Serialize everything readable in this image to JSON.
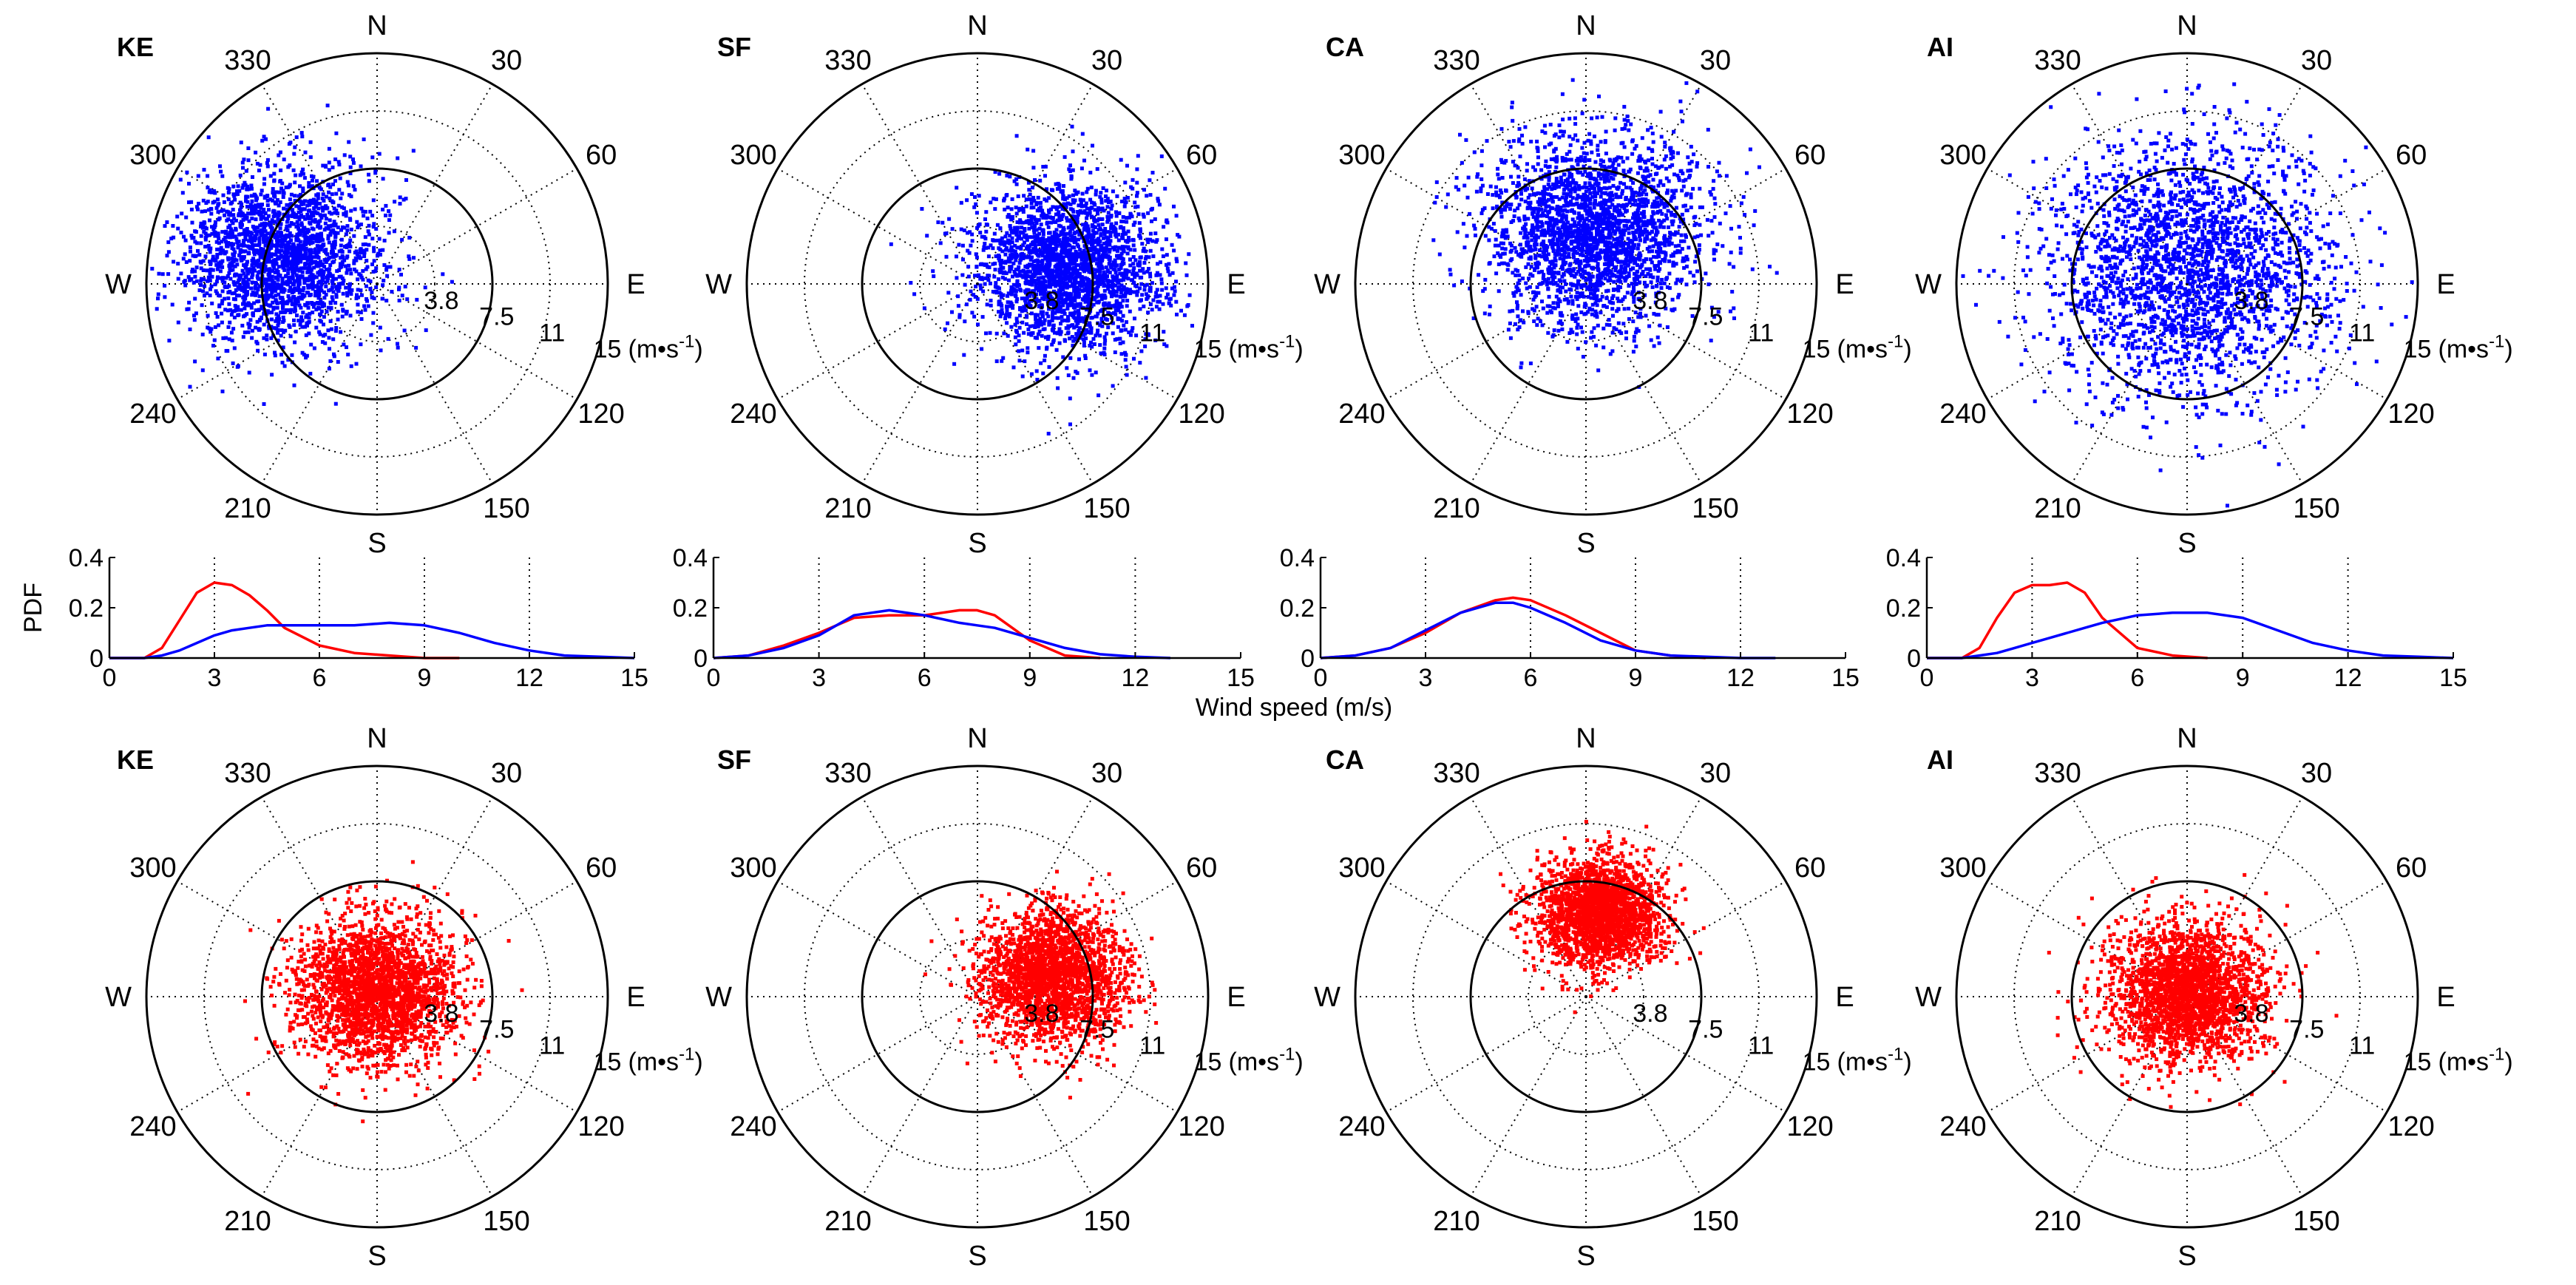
{
  "figure": {
    "shared_xlabel": "Wind speed (m/s)",
    "pdf_ylabel": "PDF",
    "series_colors": {
      "scatter_top": "#0000ff",
      "scatter_bottom": "#ff0000",
      "pdf_red": "#ff0000",
      "pdf_blue": "#0000ff"
    }
  },
  "chart_data": [
    {
      "type": "scatter",
      "subtype": "polar",
      "row": "top",
      "panel": "KE",
      "title": "KE",
      "color": "#0000ff",
      "direction_labels": [
        "N",
        "30",
        "60",
        "E",
        "120",
        "150",
        "S",
        "210",
        "240",
        "W",
        "300",
        "330"
      ],
      "radial_ticks": [
        "3.8",
        "7.5",
        "11",
        "15"
      ],
      "radial_unit_label": "(m•s",
      "radial_unit_sup": "-1",
      "rmax": 15,
      "solid_ring": 7.5,
      "cluster": {
        "center_bearing_deg": 285,
        "center_speed": 6.5,
        "spread_speed": 3.2,
        "n": 2200
      }
    },
    {
      "type": "scatter",
      "subtype": "polar",
      "row": "top",
      "panel": "SF",
      "title": "SF",
      "color": "#0000ff",
      "direction_labels": [
        "N",
        "30",
        "60",
        "E",
        "120",
        "150",
        "S",
        "210",
        "240",
        "W",
        "300",
        "330"
      ],
      "radial_ticks": [
        "3.8",
        "7.5",
        "11",
        "15"
      ],
      "radial_unit_label": "(m•s",
      "radial_unit_sup": "-1",
      "rmax": 15,
      "solid_ring": 7.5,
      "cluster": {
        "center_bearing_deg": 80,
        "center_speed": 6.0,
        "spread_speed": 3.0,
        "n": 2400
      }
    },
    {
      "type": "scatter",
      "subtype": "polar",
      "row": "top",
      "panel": "CA",
      "title": "CA",
      "color": "#0000ff",
      "direction_labels": [
        "N",
        "30",
        "60",
        "E",
        "120",
        "150",
        "S",
        "210",
        "240",
        "W",
        "300",
        "330"
      ],
      "radial_ticks": [
        "3.8",
        "7.5",
        "11",
        "15"
      ],
      "radial_unit_label": "(m•s",
      "radial_unit_sup": "-1",
      "rmax": 15,
      "solid_ring": 7.5,
      "cluster": {
        "center_bearing_deg": 10,
        "center_speed": 3.5,
        "spread_speed": 3.4,
        "n": 2400
      }
    },
    {
      "type": "scatter",
      "subtype": "polar",
      "row": "top",
      "panel": "AI",
      "title": "AI",
      "color": "#0000ff",
      "direction_labels": [
        "N",
        "30",
        "60",
        "E",
        "120",
        "150",
        "S",
        "210",
        "240",
        "W",
        "300",
        "330"
      ],
      "radial_ticks": [
        "3.8",
        "7.5",
        "11",
        "15"
      ],
      "radial_unit_label": "(m•s",
      "radial_unit_sup": "-1",
      "rmax": 15,
      "solid_ring": 7.5,
      "cluster": {
        "center_bearing_deg": 0,
        "center_speed": 1.0,
        "spread_speed": 4.6,
        "n": 2400
      }
    },
    {
      "type": "line",
      "row": "middle",
      "panel": "KE-pdf",
      "xlabel": "",
      "ylabel": "PDF",
      "xlim": [
        0,
        15
      ],
      "ylim": [
        0,
        0.4
      ],
      "xticks": [
        "0",
        "3",
        "6",
        "9",
        "12",
        "15"
      ],
      "yticks": [
        "0",
        "0.2",
        "0.4"
      ],
      "x": [
        0,
        1,
        1.5,
        2,
        2.5,
        3,
        3.5,
        4,
        4.5,
        5,
        6,
        7,
        8,
        9,
        10,
        11,
        12,
        13,
        14,
        15
      ],
      "series": [
        {
          "name": "red",
          "color": "#ff0000",
          "values": [
            0,
            0.0,
            0.04,
            0.15,
            0.26,
            0.3,
            0.29,
            0.25,
            0.19,
            0.12,
            0.05,
            0.02,
            0.01,
            0.0,
            0.0,
            null,
            null,
            null,
            null,
            null
          ]
        },
        {
          "name": "blue",
          "color": "#0000ff",
          "values": [
            0,
            0.0,
            0.01,
            0.03,
            0.06,
            0.09,
            0.11,
            0.12,
            0.13,
            0.13,
            0.13,
            0.13,
            0.14,
            0.13,
            0.1,
            0.06,
            0.03,
            0.01,
            0.005,
            0.0
          ]
        }
      ]
    },
    {
      "type": "line",
      "row": "middle",
      "panel": "SF-pdf",
      "xlabel": "",
      "ylabel": "",
      "xlim": [
        0,
        15
      ],
      "ylim": [
        0,
        0.4
      ],
      "xticks": [
        "0",
        "3",
        "6",
        "9",
        "12",
        "15"
      ],
      "yticks": [
        "0",
        "0.2",
        "0.4"
      ],
      "x": [
        0,
        1,
        2,
        3,
        4,
        5,
        6,
        7,
        7.5,
        8,
        9,
        10,
        11,
        12,
        13,
        14,
        15
      ],
      "series": [
        {
          "name": "red",
          "color": "#ff0000",
          "values": [
            0,
            0.01,
            0.05,
            0.1,
            0.16,
            0.17,
            0.17,
            0.19,
            0.19,
            0.17,
            0.07,
            0.01,
            0.0,
            null,
            null,
            null,
            null
          ]
        },
        {
          "name": "blue",
          "color": "#0000ff",
          "values": [
            0,
            0.01,
            0.04,
            0.09,
            0.17,
            0.19,
            0.17,
            0.14,
            0.13,
            0.12,
            0.08,
            0.04,
            0.015,
            0.005,
            0.0,
            null,
            null
          ]
        }
      ]
    },
    {
      "type": "line",
      "row": "middle",
      "panel": "CA-pdf",
      "xlabel": "",
      "ylabel": "",
      "xlim": [
        0,
        15
      ],
      "ylim": [
        0,
        0.4
      ],
      "xticks": [
        "0",
        "3",
        "6",
        "9",
        "12",
        "15"
      ],
      "yticks": [
        "0",
        "0.2",
        "0.4"
      ],
      "x": [
        0,
        1,
        2,
        3,
        4,
        5,
        5.5,
        6,
        7,
        8,
        9,
        10,
        11,
        12,
        13,
        14,
        15
      ],
      "series": [
        {
          "name": "red",
          "color": "#ff0000",
          "values": [
            0,
            0.01,
            0.04,
            0.1,
            0.18,
            0.23,
            0.24,
            0.23,
            0.17,
            0.1,
            0.03,
            0.01,
            0.0,
            null,
            null,
            null,
            null
          ]
        },
        {
          "name": "blue",
          "color": "#0000ff",
          "values": [
            0,
            0.01,
            0.04,
            0.11,
            0.18,
            0.22,
            0.22,
            0.2,
            0.14,
            0.07,
            0.03,
            0.01,
            0.005,
            0.0,
            0.0,
            null,
            null
          ]
        }
      ]
    },
    {
      "type": "line",
      "row": "middle",
      "panel": "AI-pdf",
      "xlabel": "",
      "ylabel": "",
      "xlim": [
        0,
        15
      ],
      "ylim": [
        0,
        0.4
      ],
      "xticks": [
        "0",
        "3",
        "6",
        "9",
        "12",
        "15"
      ],
      "yticks": [
        "0",
        "0.2",
        "0.4"
      ],
      "x": [
        0,
        1,
        1.5,
        2,
        2.5,
        3,
        3.5,
        4,
        4.5,
        5,
        6,
        7,
        8,
        9,
        10,
        11,
        12,
        13,
        14,
        15
      ],
      "series": [
        {
          "name": "red",
          "color": "#ff0000",
          "values": [
            0,
            0.0,
            0.04,
            0.16,
            0.26,
            0.29,
            0.29,
            0.3,
            0.26,
            0.16,
            0.04,
            0.01,
            0.0,
            null,
            null,
            null,
            null,
            null,
            null,
            null
          ]
        },
        {
          "name": "blue",
          "color": "#0000ff",
          "values": [
            0,
            0.0,
            0.01,
            0.02,
            0.04,
            0.06,
            0.08,
            0.1,
            0.12,
            0.14,
            0.17,
            0.18,
            0.18,
            0.16,
            0.11,
            0.06,
            0.03,
            0.01,
            0.005,
            0.0
          ]
        }
      ]
    },
    {
      "type": "scatter",
      "subtype": "polar",
      "row": "bottom",
      "panel": "KE",
      "title": "KE",
      "color": "#ff0000",
      "direction_labels": [
        "N",
        "30",
        "60",
        "E",
        "120",
        "150",
        "S",
        "210",
        "240",
        "W",
        "300",
        "330"
      ],
      "radial_ticks": [
        "3.8",
        "7.5",
        "11",
        "15"
      ],
      "radial_unit_label": "(m•s",
      "radial_unit_sup": "-1",
      "rmax": 15,
      "solid_ring": 7.5,
      "cluster": {
        "center_bearing_deg": 0,
        "center_speed": 0.3,
        "spread_speed": 2.6,
        "n": 2400
      }
    },
    {
      "type": "scatter",
      "subtype": "polar",
      "row": "bottom",
      "panel": "SF",
      "title": "SF",
      "color": "#ff0000",
      "direction_labels": [
        "N",
        "30",
        "60",
        "E",
        "120",
        "150",
        "S",
        "210",
        "240",
        "W",
        "300",
        "330"
      ],
      "radial_ticks": [
        "3.8",
        "7.5",
        "11",
        "15"
      ],
      "radial_unit_label": "(m•s",
      "radial_unit_sup": "-1",
      "rmax": 15,
      "solid_ring": 7.5,
      "cluster": {
        "center_bearing_deg": 75,
        "center_speed": 5.0,
        "spread_speed": 2.4,
        "n": 2200
      }
    },
    {
      "type": "scatter",
      "subtype": "polar",
      "row": "bottom",
      "panel": "CA",
      "title": "CA",
      "color": "#ff0000",
      "direction_labels": [
        "N",
        "30",
        "60",
        "E",
        "120",
        "150",
        "S",
        "210",
        "240",
        "W",
        "300",
        "330"
      ],
      "radial_ticks": [
        "3.8",
        "7.5",
        "11",
        "15"
      ],
      "radial_unit_label": "(m•s",
      "radial_unit_sup": "-1",
      "rmax": 15,
      "solid_ring": 7.5,
      "cluster": {
        "center_bearing_deg": 10,
        "center_speed": 5.5,
        "spread_speed": 2.0,
        "n": 2200
      }
    },
    {
      "type": "scatter",
      "subtype": "polar",
      "row": "bottom",
      "panel": "AI",
      "title": "AI",
      "color": "#ff0000",
      "direction_labels": [
        "N",
        "30",
        "60",
        "E",
        "120",
        "150",
        "S",
        "210",
        "240",
        "W",
        "300",
        "330"
      ],
      "radial_ticks": [
        "3.8",
        "7.5",
        "11",
        "15"
      ],
      "radial_unit_label": "(m•s",
      "radial_unit_sup": "-1",
      "rmax": 15,
      "solid_ring": 7.5,
      "cluster": {
        "center_bearing_deg": 0,
        "center_speed": 0.3,
        "spread_speed": 2.5,
        "n": 2400
      }
    }
  ]
}
